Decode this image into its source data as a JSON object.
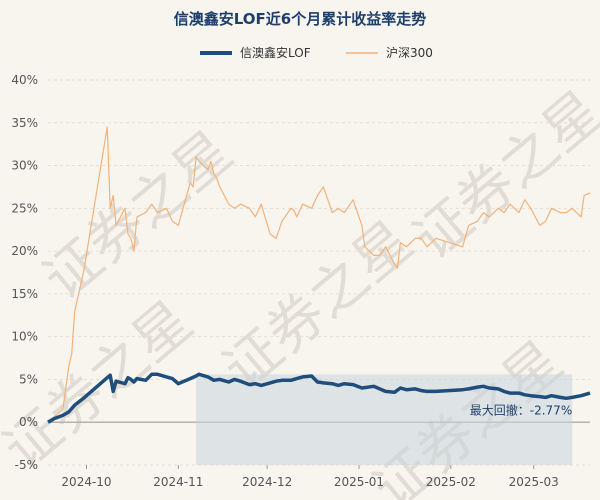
{
  "chart_data": {
    "type": "line",
    "title": "信澳鑫安LOF近6个月累计收益率走势",
    "legend_position": "top",
    "ylim": [
      -5,
      40
    ],
    "y_ticks": [
      "40%",
      "35%",
      "30%",
      "25%",
      "20%",
      "15%",
      "10%",
      "5%",
      "0%",
      "-5%"
    ],
    "y_tick_values": [
      40,
      35,
      30,
      25,
      20,
      15,
      10,
      5,
      0,
      -5
    ],
    "x_ticks": [
      "2024-10",
      "2024-11",
      "2024-12",
      "2025-01",
      "2025-02",
      "2025-03"
    ],
    "x_start": "2024-09-18",
    "x_end": "2025-03-20",
    "grid": "horizontal",
    "series": [
      {
        "name": "信澳鑫安LOF",
        "color": "#1f4e7d",
        "x": [
          "2024-09-18",
          "2024-09-20",
          "2024-09-23",
          "2024-09-25",
          "2024-09-27",
          "2024-09-30",
          "2024-10-08",
          "2024-10-09",
          "2024-10-10",
          "2024-10-11",
          "2024-10-14",
          "2024-10-15",
          "2024-10-16",
          "2024-10-17",
          "2024-10-18",
          "2024-10-21",
          "2024-10-23",
          "2024-10-25",
          "2024-10-28",
          "2024-10-30",
          "2024-11-01",
          "2024-11-05",
          "2024-11-07",
          "2024-11-08",
          "2024-11-11",
          "2024-11-13",
          "2024-11-15",
          "2024-11-18",
          "2024-11-20",
          "2024-11-22",
          "2024-11-25",
          "2024-11-27",
          "2024-11-29",
          "2024-12-02",
          "2024-12-04",
          "2024-12-06",
          "2024-12-09",
          "2024-12-11",
          "2024-12-13",
          "2024-12-16",
          "2024-12-18",
          "2024-12-20",
          "2024-12-23",
          "2024-12-25",
          "2024-12-27",
          "2024-12-30",
          "2025-01-02",
          "2025-01-06",
          "2025-01-08",
          "2025-01-10",
          "2025-01-13",
          "2025-01-15",
          "2025-01-17",
          "2025-01-20",
          "2025-01-22",
          "2025-01-24",
          "2025-01-27",
          "2025-02-05",
          "2025-02-07",
          "2025-02-10",
          "2025-02-12",
          "2025-02-14",
          "2025-02-17",
          "2025-02-19",
          "2025-02-21",
          "2025-02-24",
          "2025-02-26",
          "2025-02-28",
          "2025-03-03",
          "2025-03-05",
          "2025-03-07",
          "2025-03-10",
          "2025-03-12",
          "2025-03-14",
          "2025-03-17",
          "2025-03-20"
        ],
        "y": [
          0.0,
          0.4,
          0.8,
          1.2,
          2.0,
          2.8,
          5.2,
          5.5,
          3.6,
          4.8,
          4.5,
          5.2,
          5.0,
          4.7,
          5.1,
          4.9,
          5.6,
          5.6,
          5.3,
          5.1,
          4.5,
          5.1,
          5.4,
          5.6,
          5.3,
          4.9,
          5.0,
          4.7,
          5.0,
          4.8,
          4.4,
          4.5,
          4.3,
          4.6,
          4.8,
          4.9,
          4.9,
          5.1,
          5.3,
          5.4,
          4.7,
          4.6,
          4.5,
          4.3,
          4.5,
          4.4,
          4.0,
          4.2,
          3.9,
          3.6,
          3.5,
          4.0,
          3.8,
          3.9,
          3.7,
          3.6,
          3.6,
          3.8,
          3.9,
          4.1,
          4.2,
          4.0,
          3.9,
          3.6,
          3.4,
          3.4,
          3.2,
          3.1,
          3.0,
          2.9,
          3.1,
          2.9,
          2.8,
          2.9,
          3.1,
          3.4
        ]
      },
      {
        "name": "沪深300",
        "color": "#f2b27a",
        "x": [
          "2024-09-18",
          "2024-09-20",
          "2024-09-23",
          "2024-09-24",
          "2024-09-25",
          "2024-09-26",
          "2024-09-27",
          "2024-09-30",
          "2024-10-08",
          "2024-10-09",
          "2024-10-10",
          "2024-10-11",
          "2024-10-14",
          "2024-10-15",
          "2024-10-16",
          "2024-10-17",
          "2024-10-18",
          "2024-10-21",
          "2024-10-23",
          "2024-10-25",
          "2024-10-28",
          "2024-10-30",
          "2024-11-01",
          "2024-11-05",
          "2024-11-06",
          "2024-11-07",
          "2024-11-08",
          "2024-11-11",
          "2024-11-12",
          "2024-11-13",
          "2024-11-14",
          "2024-11-15",
          "2024-11-18",
          "2024-11-20",
          "2024-11-22",
          "2024-11-25",
          "2024-11-27",
          "2024-11-29",
          "2024-12-02",
          "2024-12-04",
          "2024-12-06",
          "2024-12-09",
          "2024-12-10",
          "2024-12-11",
          "2024-12-13",
          "2024-12-16",
          "2024-12-18",
          "2024-12-20",
          "2024-12-23",
          "2024-12-25",
          "2024-12-27",
          "2024-12-30",
          "2025-01-02",
          "2025-01-03",
          "2025-01-06",
          "2025-01-08",
          "2025-01-10",
          "2025-01-13",
          "2025-01-14",
          "2025-01-15",
          "2025-01-17",
          "2025-01-20",
          "2025-01-22",
          "2025-01-24",
          "2025-01-27",
          "2025-02-05",
          "2025-02-07",
          "2025-02-10",
          "2025-02-12",
          "2025-02-14",
          "2025-02-17",
          "2025-02-19",
          "2025-02-21",
          "2025-02-24",
          "2025-02-26",
          "2025-02-28",
          "2025-03-03",
          "2025-03-05",
          "2025-03-07",
          "2025-03-10",
          "2025-03-12",
          "2025-03-14",
          "2025-03-17",
          "2025-03-18",
          "2025-03-20"
        ],
        "y": [
          0.0,
          0.6,
          1.5,
          4.0,
          6.5,
          8.0,
          13.0,
          17.5,
          34.5,
          25.0,
          26.5,
          23.0,
          25.0,
          22.0,
          21.5,
          20.0,
          24.0,
          24.5,
          25.5,
          24.5,
          25.0,
          23.5,
          23.0,
          28.0,
          27.5,
          31.0,
          30.5,
          29.5,
          30.5,
          29.0,
          28.5,
          27.5,
          25.5,
          25.0,
          25.5,
          25.0,
          24.0,
          25.5,
          22.0,
          21.5,
          23.5,
          25.0,
          24.8,
          24.0,
          25.5,
          25.0,
          26.5,
          27.5,
          24.5,
          25.0,
          24.5,
          26.0,
          23.0,
          20.5,
          19.5,
          19.5,
          20.5,
          18.5,
          18.0,
          21.0,
          20.5,
          21.5,
          21.5,
          20.5,
          21.5,
          20.5,
          23.0,
          23.5,
          24.5,
          24.0,
          25.0,
          24.5,
          25.5,
          24.5,
          26.0,
          25.0,
          23.0,
          23.5,
          25.0,
          24.5,
          24.5,
          25.0,
          24.0,
          26.5,
          26.8
        ]
      }
    ],
    "annotation": {
      "label": "最大回撤：-2.77%",
      "shade_from": "2024-11-07",
      "shade_to": "2025-03-14",
      "shade_top_value": 5.6
    }
  },
  "watermark": "证券之星"
}
